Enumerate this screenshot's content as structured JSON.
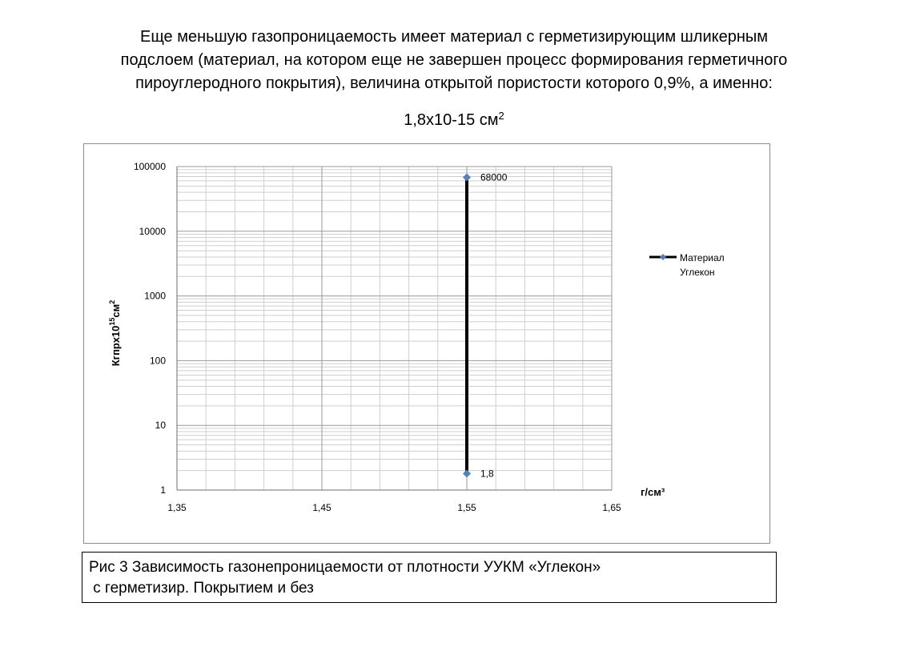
{
  "intro": {
    "lines": [
      "Еще меньшую газопроницаемость имеет материал с герметизирующим шликерным",
      "подслоем (материал, на котором еще не завершен процесс формирования герметичного",
      "пироуглеродного покрытия), величина открытой пористости которого 0,9%, а именно:"
    ],
    "formula": "1,8х10-15 см",
    "formula_sup": "2"
  },
  "chart_data": {
    "type": "line",
    "x_ticks": [
      "1,35",
      "1,45",
      "1,55",
      "1,65"
    ],
    "xlim": [
      1.35,
      1.65
    ],
    "xlabel": "г/см³",
    "y_ticks": [
      "1",
      "10",
      "100",
      "1000",
      "10000",
      "100000"
    ],
    "ylim": [
      1,
      100000
    ],
    "yscale": "log",
    "ylabel_main": "Кгпрх10",
    "ylabel_exp": "15",
    "ylabel_unit": "см",
    "ylabel_unit_exp": "2",
    "grid": true,
    "legend_position": "right",
    "series": [
      {
        "name": "Материал Углекон",
        "name_lines": [
          "Материал",
          "Углекон"
        ],
        "color": "#000000",
        "marker_color": "#4f81bd",
        "x": [
          1.55,
          1.55
        ],
        "y": [
          68000,
          1.8
        ],
        "labels": [
          "68000",
          "1,8"
        ]
      }
    ]
  },
  "caption": {
    "line1": "Рис 3 Зависимость газонепроницаемости от плотности УУКМ «Углекон»",
    "line2": " с герметизир. Покрытием и без"
  }
}
